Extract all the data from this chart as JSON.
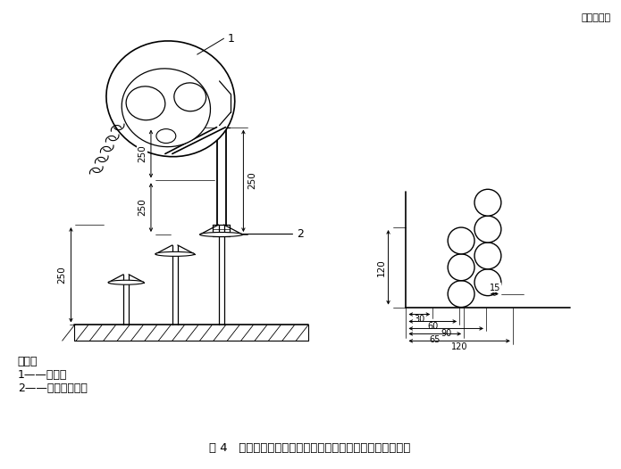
{
  "title": "图 4   全面罩、中压导气管和供气阀阻燃性能试验装置示意图",
  "unit_text": "单位为毫米",
  "legend_title": "说明：",
  "legend_1": "1——试样；",
  "legend_2": "2——燃烧器喘嘴。",
  "label_1": "1",
  "label_2": "2",
  "dim_250a": "250",
  "dim_250b": "250",
  "dim_250c": "250",
  "dim_250d": "250",
  "dim_120": "120",
  "dim_90": "90",
  "dim_60": "60",
  "dim_30": "30",
  "dim_65": "65",
  "dim_120b": "120",
  "dim_15": "15",
  "bg_color": "#ffffff"
}
